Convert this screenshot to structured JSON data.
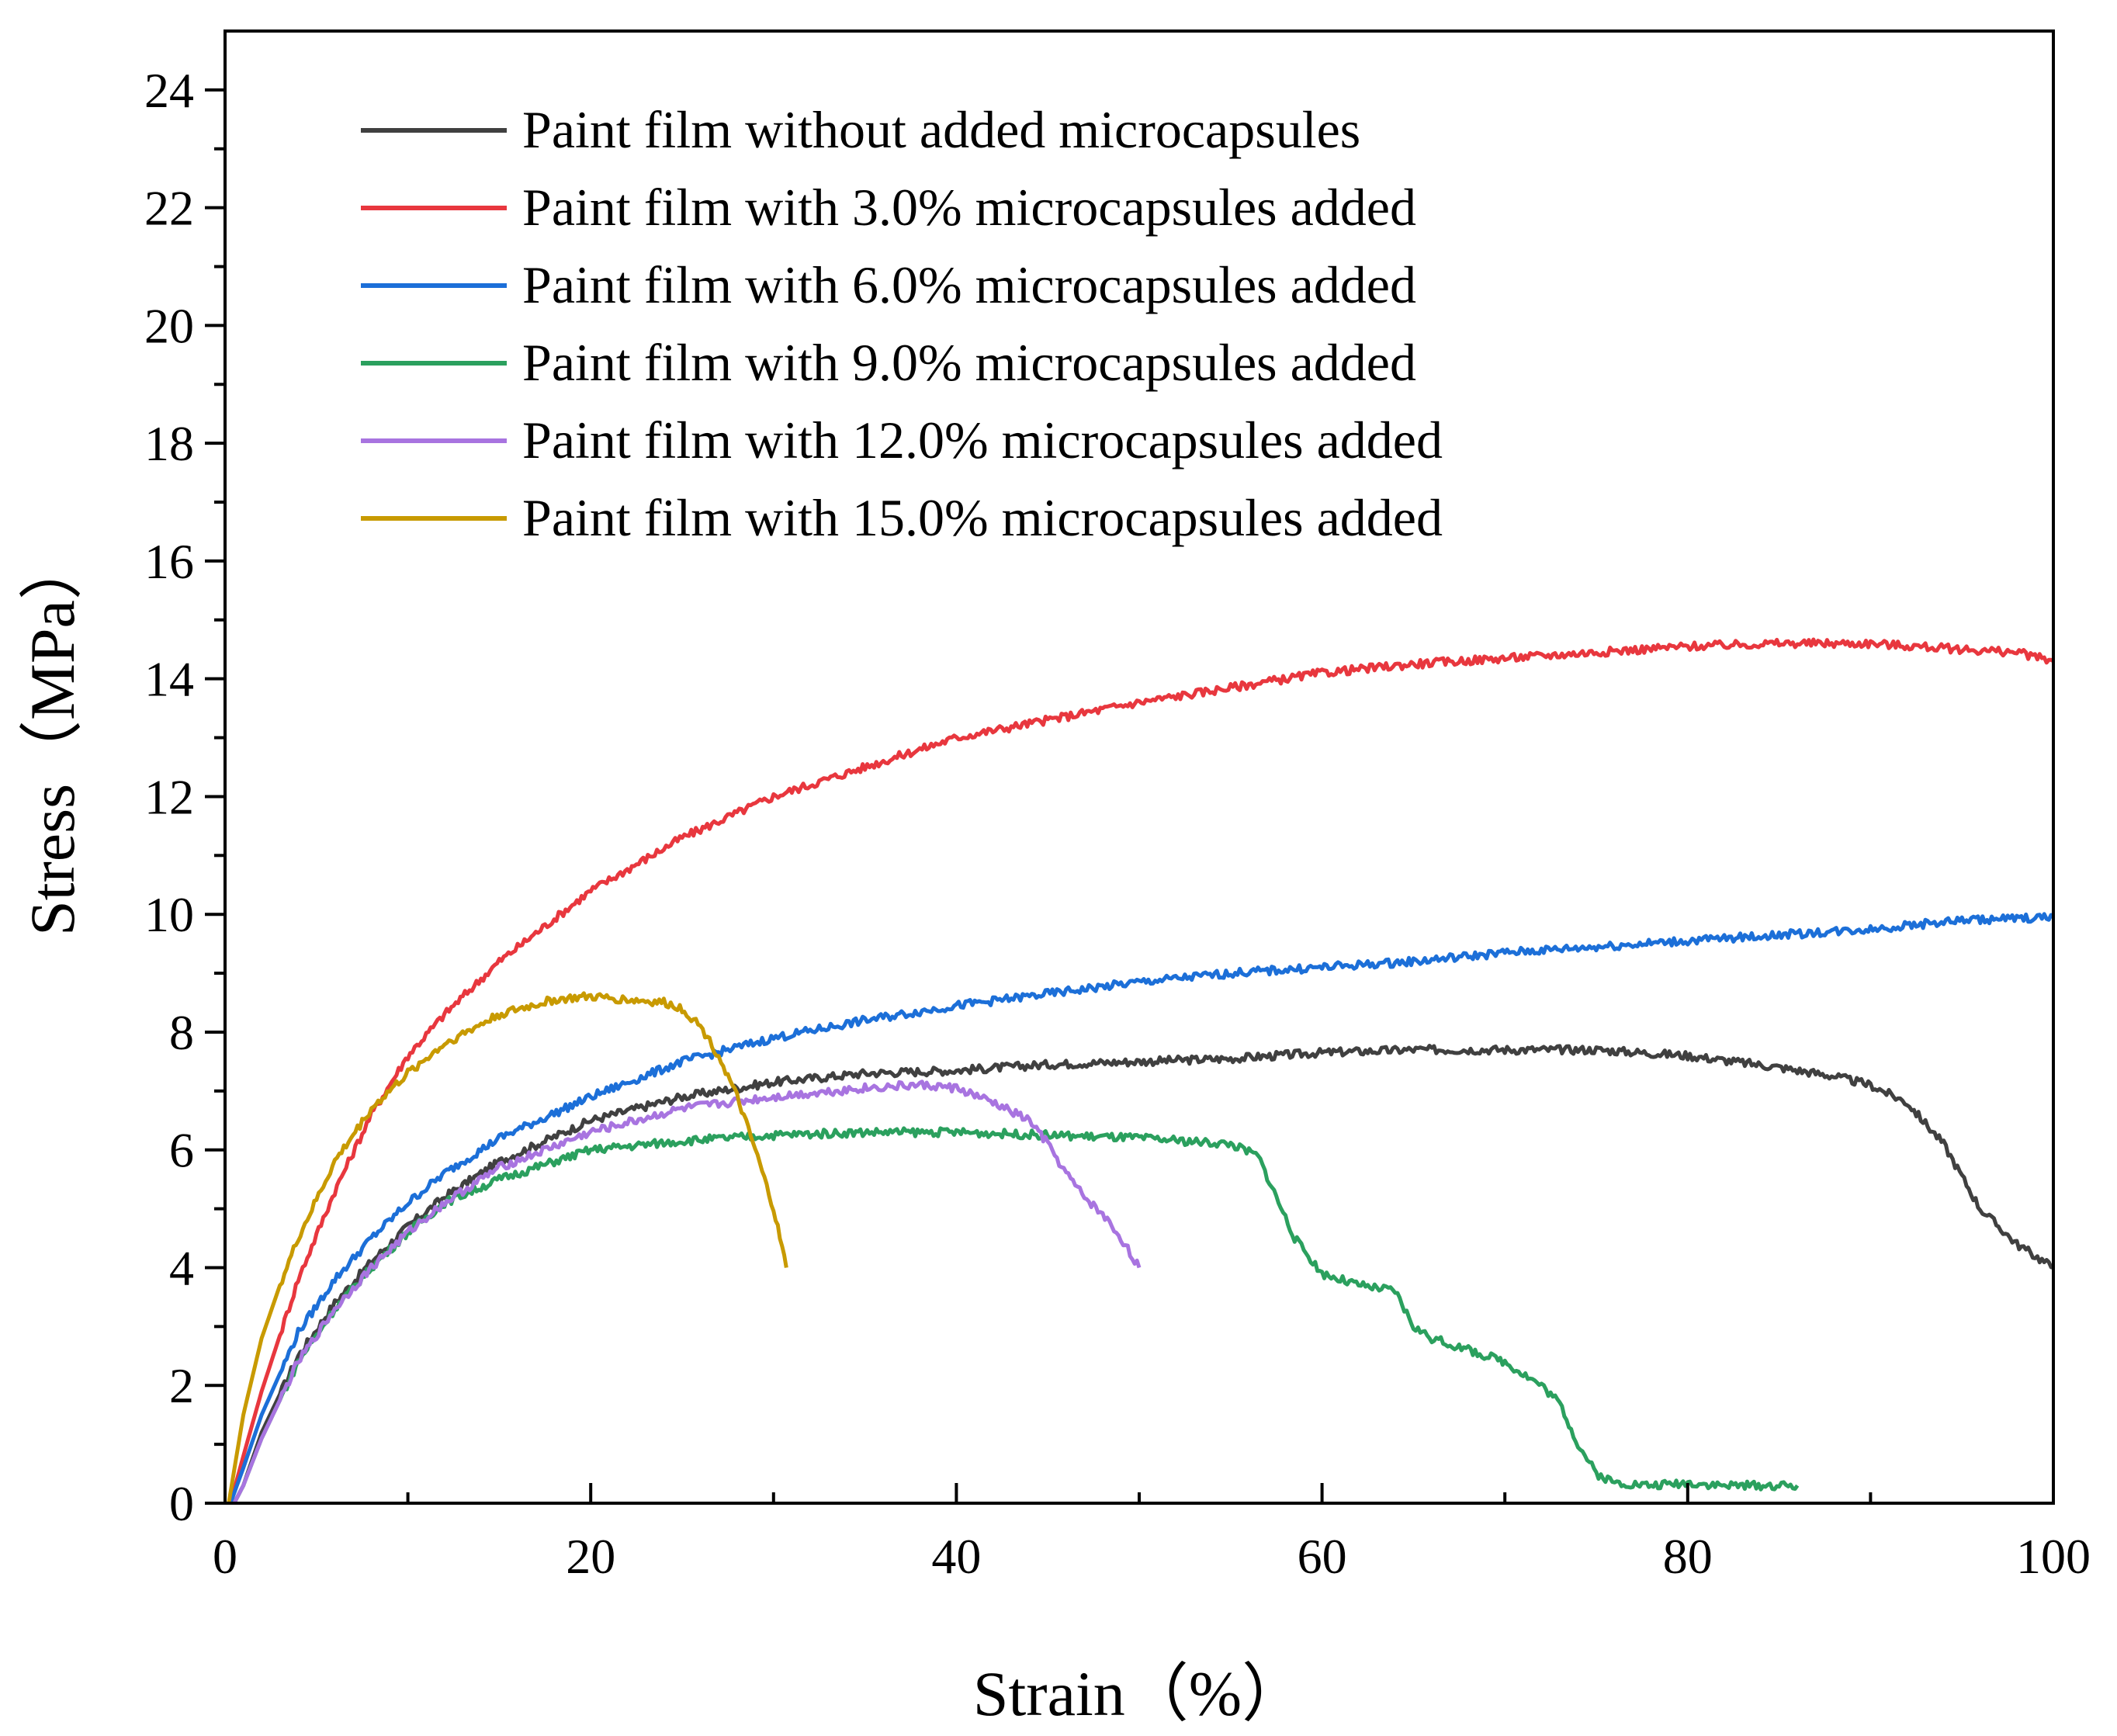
{
  "chart_data": {
    "type": "line",
    "title": "",
    "xlabel": "Strain（%）",
    "ylabel": "Stress（MPa）",
    "xlim": [
      0,
      100
    ],
    "ylim": [
      0,
      25
    ],
    "x_ticks": [
      "0",
      "20",
      "40",
      "60",
      "80",
      "100"
    ],
    "y_ticks": [
      "0",
      "2",
      "4",
      "6",
      "8",
      "10",
      "12",
      "14",
      "16",
      "18",
      "20",
      "22",
      "24"
    ],
    "grid": false,
    "legend_position": "top-left",
    "series": [
      {
        "name": "Paint film without added microcapsules",
        "color": "#404040",
        "x": [
          0.5,
          1,
          2,
          4,
          6,
          8,
          10,
          12,
          15,
          20,
          25,
          30,
          35,
          40,
          45,
          50,
          55,
          60,
          65,
          70,
          75,
          80,
          85,
          88,
          90,
          92,
          94,
          96,
          98,
          100
        ],
        "y": [
          0,
          0.3,
          1.2,
          2.5,
          3.4,
          4.1,
          4.7,
          5.2,
          5.8,
          6.5,
          6.9,
          7.15,
          7.3,
          7.35,
          7.45,
          7.5,
          7.55,
          7.65,
          7.7,
          7.7,
          7.7,
          7.6,
          7.4,
          7.25,
          7.1,
          6.8,
          6.1,
          5.0,
          4.4,
          4.0
        ]
      },
      {
        "name": "Paint film with 3.0% microcapsules added",
        "color": "#e8373e",
        "x": [
          0.3,
          1,
          2,
          4,
          6,
          8,
          10,
          12,
          15,
          20,
          25,
          30,
          35,
          40,
          45,
          50,
          55,
          60,
          65,
          70,
          75,
          80,
          85,
          90,
          95,
          98,
          100
        ],
        "y": [
          0,
          0.8,
          1.9,
          3.8,
          5.3,
          6.6,
          7.6,
          8.3,
          9.2,
          10.4,
          11.3,
          12.0,
          12.5,
          13.0,
          13.3,
          13.6,
          13.85,
          14.1,
          14.25,
          14.35,
          14.45,
          14.55,
          14.6,
          14.6,
          14.5,
          14.45,
          14.3
        ]
      },
      {
        "name": "Paint film with 6.0% microcapsules added",
        "color": "#1c6fd8",
        "x": [
          0.3,
          1,
          2,
          4,
          6,
          8,
          10,
          12,
          15,
          20,
          25,
          30,
          35,
          40,
          45,
          50,
          55,
          60,
          65,
          70,
          75,
          80,
          85,
          90,
          95,
          100
        ],
        "y": [
          0,
          0.6,
          1.5,
          2.9,
          3.8,
          4.5,
          5.1,
          5.6,
          6.2,
          6.9,
          7.5,
          7.9,
          8.2,
          8.45,
          8.65,
          8.85,
          9.0,
          9.1,
          9.2,
          9.35,
          9.45,
          9.55,
          9.65,
          9.75,
          9.9,
          9.95
        ]
      },
      {
        "name": "Paint film with 9.0% microcapsules added",
        "color": "#2ba05e",
        "x": [
          0.5,
          1,
          2,
          4,
          6,
          8,
          10,
          12,
          15,
          20,
          25,
          30,
          35,
          40,
          45,
          50,
          55,
          56.5,
          57.5,
          58.5,
          60,
          62,
          64,
          65,
          66,
          68,
          70,
          72,
          73,
          74,
          75,
          76,
          78,
          80,
          82,
          84,
          86
        ],
        "y": [
          0,
          0.3,
          1.1,
          2.4,
          3.3,
          4.0,
          4.6,
          5.1,
          5.5,
          6.0,
          6.15,
          6.25,
          6.3,
          6.3,
          6.25,
          6.2,
          6.1,
          5.9,
          5.2,
          4.5,
          3.9,
          3.7,
          3.6,
          3.0,
          2.8,
          2.6,
          2.4,
          2.0,
          1.7,
          1.0,
          0.5,
          0.35,
          0.3,
          0.35,
          0.3,
          0.3,
          0.3
        ]
      },
      {
        "name": "Paint film with 12.0% microcapsules added",
        "color": "#a874e0",
        "x": [
          0.5,
          1,
          2,
          4,
          6,
          8,
          10,
          12,
          15,
          20,
          25,
          30,
          35,
          38,
          40,
          42,
          44,
          45,
          46,
          47,
          48,
          49,
          50
        ],
        "y": [
          0,
          0.3,
          1.1,
          2.4,
          3.3,
          4.0,
          4.6,
          5.1,
          5.7,
          6.3,
          6.7,
          6.9,
          7.05,
          7.1,
          7.05,
          6.8,
          6.5,
          6.1,
          5.6,
          5.2,
          4.9,
          4.5,
          4.0
        ]
      },
      {
        "name": "Paint film with 15.0% microcapsules added",
        "color": "#c89a00",
        "x": [
          0.2,
          1,
          2,
          3,
          4,
          6,
          8,
          10,
          12,
          15,
          18,
          20,
          22,
          24,
          25,
          26,
          27,
          28,
          29,
          30,
          30.7
        ],
        "y": [
          0,
          1.5,
          2.8,
          3.7,
          4.5,
          5.8,
          6.7,
          7.3,
          7.8,
          8.3,
          8.55,
          8.6,
          8.55,
          8.5,
          8.4,
          8.1,
          7.6,
          6.9,
          6.0,
          5.0,
          4.0
        ]
      }
    ]
  }
}
